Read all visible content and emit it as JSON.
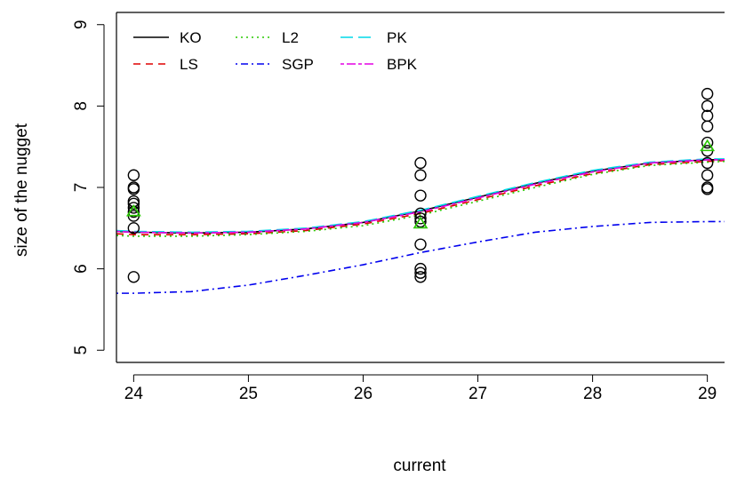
{
  "chart_data": {
    "type": "line",
    "xlabel": "current",
    "ylabel": "size of the nugget",
    "xlim": [
      23.85,
      29.15
    ],
    "ylim": [
      4.85,
      9.15
    ],
    "xticks": [
      24,
      25,
      26,
      27,
      28,
      29
    ],
    "yticks": [
      5,
      6,
      7,
      8,
      9
    ],
    "grid": false,
    "legend_placement": "top-left",
    "series": [
      {
        "name": "KO",
        "color": "#000000",
        "dash": "solid",
        "x": [
          23.85,
          24.0,
          24.5,
          25.0,
          25.5,
          26.0,
          26.5,
          27.0,
          27.5,
          28.0,
          28.5,
          29.0,
          29.15
        ],
        "y": [
          6.46,
          6.45,
          6.44,
          6.45,
          6.49,
          6.57,
          6.71,
          6.88,
          7.05,
          7.2,
          7.3,
          7.34,
          7.34
        ]
      },
      {
        "name": "LS",
        "color": "#df0000",
        "dash": "dashed",
        "x": [
          23.85,
          24.0,
          24.5,
          25.0,
          25.5,
          26.0,
          26.5,
          27.0,
          27.5,
          28.0,
          28.5,
          29.0,
          29.15
        ],
        "y": [
          6.43,
          6.42,
          6.42,
          6.43,
          6.47,
          6.55,
          6.68,
          6.85,
          7.02,
          7.17,
          7.28,
          7.32,
          7.33
        ]
      },
      {
        "name": "L2",
        "color": "#28c800",
        "dash": "dotted",
        "x": [
          23.85,
          24.0,
          24.5,
          25.0,
          25.5,
          26.0,
          26.5,
          27.0,
          27.5,
          28.0,
          28.5,
          29.0,
          29.15
        ],
        "y": [
          6.41,
          6.4,
          6.4,
          6.42,
          6.46,
          6.53,
          6.66,
          6.83,
          7.0,
          7.16,
          7.27,
          7.31,
          7.32
        ]
      },
      {
        "name": "SGP",
        "color": "#0000ee",
        "dash": "dotdash",
        "x": [
          23.85,
          24.0,
          24.5,
          25.0,
          25.5,
          26.0,
          26.5,
          27.0,
          27.5,
          28.0,
          28.5,
          29.0,
          29.15
        ],
        "y": [
          5.7,
          5.7,
          5.72,
          5.8,
          5.92,
          6.05,
          6.2,
          6.33,
          6.45,
          6.52,
          6.57,
          6.58,
          6.58
        ]
      },
      {
        "name": "PK",
        "color": "#00d8e8",
        "dash": "longdash",
        "x": [
          23.85,
          24.0,
          24.5,
          25.0,
          25.5,
          26.0,
          26.5,
          27.0,
          27.5,
          28.0,
          28.5,
          29.0,
          29.15
        ],
        "y": [
          6.47,
          6.46,
          6.45,
          6.46,
          6.5,
          6.58,
          6.72,
          6.89,
          7.06,
          7.21,
          7.31,
          7.35,
          7.35
        ]
      },
      {
        "name": "BPK",
        "color": "#e400e4",
        "dash": "twodash",
        "x": [
          23.85,
          24.0,
          24.5,
          25.0,
          25.5,
          26.0,
          26.5,
          27.0,
          27.5,
          28.0,
          28.5,
          29.0,
          29.15
        ],
        "y": [
          6.46,
          6.45,
          6.44,
          6.45,
          6.49,
          6.57,
          6.7,
          6.87,
          7.04,
          7.19,
          7.3,
          7.34,
          7.34
        ]
      }
    ],
    "observations": {
      "marker": "open circle",
      "color": "#000000",
      "x": [
        24,
        24,
        24,
        24,
        24,
        24,
        24,
        24,
        24,
        24,
        26.5,
        26.5,
        26.5,
        26.5,
        26.5,
        26.5,
        26.5,
        26.5,
        26.5,
        26.5,
        29,
        29,
        29,
        29,
        29,
        29,
        29,
        29,
        29,
        29
      ],
      "y": [
        7.15,
        7.0,
        6.98,
        6.83,
        6.8,
        6.75,
        6.7,
        6.65,
        6.5,
        5.9,
        7.3,
        7.15,
        6.9,
        6.68,
        6.62,
        6.58,
        6.3,
        6.0,
        5.95,
        5.9,
        8.15,
        8.0,
        7.88,
        7.75,
        7.55,
        7.45,
        7.3,
        7.15,
        7.0,
        6.98
      ]
    },
    "means": {
      "marker": "open triangle",
      "color": "#28c800",
      "x": [
        24,
        26.5,
        29
      ],
      "y": [
        6.7,
        6.55,
        7.5
      ]
    }
  }
}
